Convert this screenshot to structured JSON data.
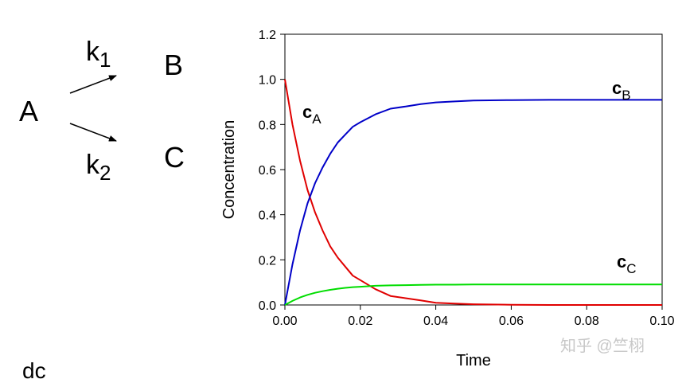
{
  "scheme": {
    "reactant": "A",
    "product_b": "B",
    "product_c": "C",
    "k1_base": "k",
    "k1_sub": "1",
    "k2_base": "k",
    "k2_sub": "2"
  },
  "partial_text": "dc",
  "watermark": "知乎 @竺栩",
  "chart_data": {
    "type": "line",
    "xlabel": "Time",
    "ylabel": "Concentration",
    "xlim": [
      0,
      0.1
    ],
    "ylim": [
      0,
      1.2
    ],
    "xticks": [
      "0.00",
      "0.02",
      "0.04",
      "0.06",
      "0.08",
      "0.10"
    ],
    "yticks": [
      "0.0",
      "0.2",
      "0.4",
      "0.6",
      "0.8",
      "1.0",
      "1.2"
    ],
    "series": [
      {
        "name": "cA",
        "label_base": "c",
        "label_sub": "A",
        "color": "#e00000",
        "x": [
          0,
          0.002,
          0.004,
          0.006,
          0.008,
          0.01,
          0.012,
          0.014,
          0.016,
          0.018,
          0.02,
          0.024,
          0.028,
          0.032,
          0.036,
          0.04,
          0.045,
          0.05,
          0.06,
          0.07,
          0.08,
          0.09,
          0.1
        ],
        "y": [
          1.0,
          0.8,
          0.64,
          0.51,
          0.41,
          0.33,
          0.26,
          0.21,
          0.17,
          0.13,
          0.11,
          0.07,
          0.04,
          0.03,
          0.02,
          0.01,
          0.006,
          0.003,
          0.001,
          0,
          0,
          0,
          0
        ]
      },
      {
        "name": "cB",
        "label_base": "c",
        "label_sub": "B",
        "color": "#0000c8",
        "x": [
          0,
          0.002,
          0.004,
          0.006,
          0.008,
          0.01,
          0.012,
          0.014,
          0.016,
          0.018,
          0.02,
          0.024,
          0.028,
          0.032,
          0.036,
          0.04,
          0.045,
          0.05,
          0.06,
          0.07,
          0.08,
          0.09,
          0.1
        ],
        "y": [
          0,
          0.18,
          0.33,
          0.45,
          0.54,
          0.61,
          0.67,
          0.72,
          0.755,
          0.79,
          0.81,
          0.845,
          0.87,
          0.88,
          0.89,
          0.898,
          0.902,
          0.906,
          0.908,
          0.909,
          0.909,
          0.909,
          0.909
        ]
      },
      {
        "name": "cC",
        "label_base": "c",
        "label_sub": "C",
        "color": "#00dd00",
        "x": [
          0,
          0.002,
          0.004,
          0.006,
          0.008,
          0.01,
          0.012,
          0.014,
          0.016,
          0.018,
          0.02,
          0.024,
          0.028,
          0.032,
          0.036,
          0.04,
          0.045,
          0.05,
          0.06,
          0.07,
          0.08,
          0.09,
          0.1
        ],
        "y": [
          0,
          0.018,
          0.033,
          0.045,
          0.054,
          0.061,
          0.067,
          0.072,
          0.076,
          0.079,
          0.081,
          0.085,
          0.087,
          0.088,
          0.089,
          0.09,
          0.09,
          0.091,
          0.091,
          0.091,
          0.091,
          0.091,
          0.091
        ]
      }
    ]
  }
}
